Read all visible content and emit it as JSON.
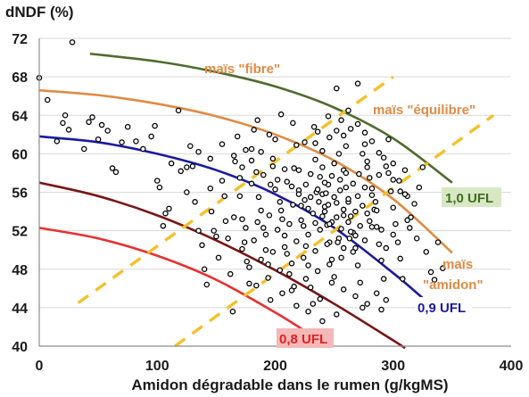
{
  "chart_data": {
    "type": "scatter",
    "title": "",
    "ylabel": "dNDF (%)",
    "xlabel": "Amidon dégradable dans le rumen (g/kgMS)",
    "xlim": [
      0,
      400
    ],
    "ylim": [
      40,
      72
    ],
    "xticks": [
      "0",
      "100",
      "200",
      "300",
      "400"
    ],
    "yticks": [
      "40",
      "44",
      "48",
      "52",
      "56",
      "60",
      "64",
      "68",
      "72"
    ],
    "grid": "horizontal",
    "ufl_curves": [
      {
        "label": "1,0 UFL",
        "color": "#4f6b2e",
        "label_bg": "#d8e8c4",
        "label_color": "#3f6d1f",
        "x": [
          43,
          100,
          150,
          200,
          250,
          300,
          350
        ],
        "y": [
          70.4,
          69.6,
          68.5,
          67.0,
          64.8,
          61.6,
          57.0
        ]
      },
      {
        "label": "",
        "color": "#e08a42",
        "x": [
          0,
          50,
          100,
          150,
          200,
          250,
          300,
          350
        ],
        "y": [
          66.6,
          66.1,
          65.2,
          63.9,
          62.0,
          59.3,
          55.3,
          49.7
        ]
      },
      {
        "label": "0,9 UFL",
        "color": "#1a1aa0",
        "label_bg": "#ffffff",
        "label_color": "#1a1aa0",
        "x": [
          0,
          50,
          100,
          150,
          200,
          250,
          300,
          325
        ],
        "y": [
          61.8,
          61.2,
          60.0,
          58.3,
          55.8,
          52.3,
          47.6,
          45.0
        ]
      },
      {
        "label": "",
        "color": "#7a1515",
        "x": [
          0,
          50,
          100,
          150,
          200,
          250,
          300,
          310
        ],
        "y": [
          57.0,
          55.6,
          53.6,
          51.0,
          47.9,
          44.4,
          40.6,
          39.8
        ]
      },
      {
        "label": "0,8 UFL",
        "color": "#e83030",
        "label_bg": "#f4b8b8",
        "label_color": "#e02020",
        "x": [
          0,
          50,
          100,
          150,
          200,
          230
        ],
        "y": [
          52.3,
          51.2,
          49.4,
          46.9,
          43.5,
          41.2
        ]
      }
    ],
    "type_lines": [
      {
        "x": [
          33,
          300
        ],
        "y": [
          44.5,
          68.0
        ]
      },
      {
        "x": [
          115,
          385
        ],
        "y": [
          40.0,
          64.0
        ]
      }
    ],
    "type_labels": [
      "maïs \"fibre\"",
      "maïs \"équilibre\"",
      "maïs",
      "\"amidon\""
    ],
    "points": [
      [
        0,
        67.9
      ],
      [
        28,
        71.6
      ],
      [
        7,
        65.6
      ],
      [
        15,
        61.3
      ],
      [
        20,
        63.2
      ],
      [
        22,
        64.0
      ],
      [
        25,
        62.5
      ],
      [
        38,
        60.5
      ],
      [
        42,
        63.3
      ],
      [
        45,
        63.8
      ],
      [
        50,
        61.5
      ],
      [
        53,
        63.0
      ],
      [
        58,
        62.4
      ],
      [
        62,
        58.5
      ],
      [
        65,
        58.1
      ],
      [
        70,
        61.2
      ],
      [
        75,
        62.8
      ],
      [
        82,
        61.3
      ],
      [
        88,
        60.5
      ],
      [
        95,
        61.8
      ],
      [
        98,
        62.9
      ],
      [
        100,
        57.2
      ],
      [
        102,
        56.5
      ],
      [
        105,
        52.5
      ],
      [
        107,
        53.8
      ],
      [
        110,
        54.3
      ],
      [
        112,
        59.0
      ],
      [
        118,
        64.5
      ],
      [
        120,
        58.2
      ],
      [
        125,
        56.0
      ],
      [
        128,
        60.8
      ],
      [
        130,
        58.7
      ],
      [
        132,
        55.0
      ],
      [
        135,
        52.0
      ],
      [
        138,
        50.5
      ],
      [
        140,
        48.0
      ],
      [
        142,
        46.4
      ],
      [
        145,
        56.4
      ],
      [
        146,
        54.0
      ],
      [
        148,
        52.0
      ],
      [
        150,
        51.4
      ],
      [
        152,
        49.2
      ],
      [
        155,
        57.2
      ],
      [
        157,
        55.6
      ],
      [
        158,
        53.0
      ],
      [
        160,
        51.2
      ],
      [
        162,
        47.5
      ],
      [
        164,
        43.6
      ],
      [
        166,
        59.2
      ],
      [
        168,
        61.8
      ],
      [
        170,
        55.6
      ],
      [
        172,
        53.2
      ],
      [
        174,
        50.8
      ],
      [
        176,
        48.8
      ],
      [
        178,
        46.5
      ],
      [
        180,
        60.5
      ],
      [
        182,
        62.5
      ],
      [
        184,
        58.1
      ],
      [
        186,
        55.5
      ],
      [
        188,
        54.1
      ],
      [
        190,
        52.3
      ],
      [
        192,
        50.0
      ],
      [
        194,
        48.5
      ],
      [
        196,
        56.8
      ],
      [
        198,
        59.5
      ],
      [
        200,
        61.5
      ],
      [
        202,
        57.3
      ],
      [
        204,
        55.0
      ],
      [
        206,
        53.2
      ],
      [
        208,
        51.5
      ],
      [
        210,
        49.6
      ],
      [
        212,
        47.5
      ],
      [
        214,
        45.8
      ],
      [
        216,
        58.5
      ],
      [
        218,
        60.9
      ],
      [
        220,
        56.2
      ],
      [
        222,
        54.6
      ],
      [
        224,
        52.5
      ],
      [
        226,
        50.4
      ],
      [
        228,
        48.4
      ],
      [
        230,
        46.1
      ],
      [
        232,
        44.4
      ],
      [
        234,
        59.4
      ],
      [
        236,
        62.3
      ],
      [
        238,
        57.6
      ],
      [
        240,
        55.8
      ],
      [
        242,
        54.0
      ],
      [
        244,
        52.6
      ],
      [
        246,
        50.8
      ],
      [
        248,
        49.0
      ],
      [
        250,
        47.2
      ],
      [
        252,
        43.3
      ],
      [
        254,
        60.0
      ],
      [
        256,
        63.5
      ],
      [
        258,
        58.3
      ],
      [
        260,
        56.5
      ],
      [
        262,
        55.0
      ],
      [
        264,
        53.5
      ],
      [
        266,
        51.8
      ],
      [
        268,
        50.2
      ],
      [
        270,
        48.4
      ],
      [
        272,
        46.6
      ],
      [
        274,
        44.0
      ],
      [
        276,
        61.0
      ],
      [
        278,
        59.2
      ],
      [
        280,
        57.5
      ],
      [
        282,
        55.7
      ],
      [
        284,
        54.2
      ],
      [
        286,
        52.4
      ],
      [
        288,
        50.6
      ],
      [
        290,
        48.9
      ],
      [
        292,
        47.0
      ],
      [
        294,
        44.8
      ],
      [
        296,
        58.0
      ],
      [
        298,
        56.1
      ],
      [
        300,
        54.4
      ],
      [
        302,
        52.7
      ],
      [
        304,
        50.8
      ],
      [
        306,
        49.1
      ],
      [
        308,
        47.0
      ],
      [
        310,
        58.3
      ],
      [
        312,
        55.6
      ],
      [
        314,
        52.3
      ],
      [
        270,
        67.3
      ],
      [
        252,
        66.8
      ],
      [
        262,
        64.5
      ],
      [
        245,
        63.9
      ],
      [
        233,
        62.8
      ],
      [
        225,
        61.2
      ],
      [
        215,
        63.2
      ],
      [
        205,
        64.1
      ],
      [
        195,
        62.0
      ],
      [
        185,
        63.5
      ],
      [
        175,
        60.4
      ],
      [
        165,
        59.8
      ],
      [
        155,
        61.0
      ],
      [
        145,
        59.5
      ],
      [
        135,
        60.2
      ],
      [
        125,
        58.6
      ],
      [
        260,
        60.8
      ],
      [
        250,
        59.0
      ],
      [
        240,
        58.6
      ],
      [
        230,
        57.9
      ],
      [
        220,
        58.3
      ],
      [
        210,
        57.1
      ],
      [
        200,
        56.3
      ],
      [
        190,
        57.8
      ],
      [
        180,
        56.9
      ],
      [
        170,
        57.5
      ],
      [
        255,
        57.3
      ],
      [
        245,
        56.8
      ],
      [
        235,
        56.0
      ],
      [
        225,
        55.2
      ],
      [
        215,
        54.7
      ],
      [
        205,
        54.1
      ],
      [
        195,
        53.6
      ],
      [
        185,
        52.9
      ],
      [
        175,
        52.3
      ],
      [
        165,
        53.4
      ],
      [
        262,
        55.3
      ],
      [
        252,
        54.9
      ],
      [
        242,
        54.5
      ],
      [
        232,
        53.8
      ],
      [
        222,
        53.1
      ],
      [
        212,
        52.7
      ],
      [
        202,
        52.1
      ],
      [
        192,
        51.6
      ],
      [
        182,
        51.0
      ],
      [
        172,
        50.1
      ],
      [
        268,
        54.0
      ],
      [
        258,
        53.6
      ],
      [
        248,
        52.9
      ],
      [
        238,
        52.1
      ],
      [
        228,
        51.6
      ],
      [
        218,
        50.9
      ],
      [
        208,
        50.3
      ],
      [
        198,
        49.8
      ],
      [
        188,
        49.0
      ],
      [
        178,
        48.2
      ],
      [
        272,
        52.5
      ],
      [
        264,
        51.9
      ],
      [
        254,
        51.2
      ],
      [
        244,
        50.6
      ],
      [
        234,
        49.9
      ],
      [
        224,
        49.2
      ],
      [
        214,
        48.6
      ],
      [
        204,
        47.9
      ],
      [
        194,
        47.1
      ],
      [
        184,
        46.3
      ],
      [
        280,
        53.0
      ],
      [
        276,
        51.0
      ],
      [
        266,
        49.8
      ],
      [
        256,
        49.2
      ],
      [
        246,
        48.5
      ],
      [
        236,
        47.8
      ],
      [
        226,
        47.0
      ],
      [
        216,
        46.2
      ],
      [
        206,
        45.5
      ],
      [
        196,
        44.8
      ],
      [
        285,
        55.0
      ],
      [
        288,
        57.8
      ],
      [
        292,
        59.6
      ],
      [
        296,
        61.5
      ],
      [
        300,
        59.0
      ],
      [
        305,
        57.2
      ],
      [
        310,
        55.8
      ],
      [
        315,
        53.4
      ],
      [
        320,
        51.2
      ],
      [
        318,
        54.8
      ],
      [
        322,
        56.5
      ],
      [
        325,
        58.6
      ],
      [
        328,
        49.8
      ],
      [
        332,
        47.7
      ],
      [
        335,
        46.9
      ],
      [
        338,
        50.8
      ],
      [
        342,
        48.1
      ],
      [
        286,
        45.5
      ],
      [
        290,
        43.8
      ],
      [
        278,
        44.4
      ],
      [
        268,
        45.2
      ],
      [
        258,
        45.9
      ],
      [
        248,
        46.6
      ],
      [
        238,
        44.9
      ],
      [
        228,
        43.6
      ],
      [
        218,
        44.2
      ],
      [
        240,
        42.6
      ],
      [
        255,
        56.2
      ],
      [
        250,
        55.5
      ],
      [
        245,
        54.7
      ],
      [
        258,
        54.2
      ],
      [
        252,
        53.4
      ],
      [
        246,
        52.7
      ],
      [
        262,
        52.9
      ],
      [
        256,
        52.2
      ],
      [
        243,
        55.9
      ],
      [
        237,
        55.0
      ],
      [
        248,
        57.7
      ],
      [
        242,
        57.0
      ],
      [
        236,
        56.3
      ],
      [
        230,
        55.5
      ],
      [
        226,
        56.8
      ],
      [
        260,
        58.0
      ],
      [
        266,
        56.9
      ],
      [
        270,
        55.6
      ],
      [
        274,
        54.6
      ],
      [
        278,
        53.8
      ],
      [
        282,
        52.4
      ],
      [
        271,
        57.9
      ],
      [
        276,
        56.5
      ],
      [
        263,
        51.2
      ],
      [
        258,
        50.2
      ],
      [
        268,
        51.5
      ],
      [
        253,
        50.8
      ],
      [
        240,
        53.5
      ],
      [
        234,
        52.8
      ],
      [
        228,
        54.3
      ],
      [
        220,
        55.8
      ],
      [
        214,
        56.6
      ],
      [
        208,
        58.4
      ],
      [
        198,
        58.7
      ],
      [
        188,
        60.2
      ],
      [
        180,
        59.3
      ],
      [
        172,
        58.6
      ],
      [
        234,
        61.1
      ],
      [
        240,
        60.3
      ],
      [
        246,
        61.7
      ],
      [
        252,
        62.4
      ],
      [
        258,
        61.9
      ],
      [
        264,
        62.6
      ],
      [
        270,
        63.1
      ],
      [
        276,
        62.2
      ],
      [
        282,
        61.3
      ],
      [
        288,
        60.1
      ],
      [
        294,
        58.7
      ],
      [
        300,
        57.3
      ],
      [
        306,
        56.1
      ],
      [
        312,
        53.1
      ],
      [
        300,
        51.6
      ],
      [
        294,
        50.2
      ],
      [
        290,
        52.1
      ],
      [
        286,
        54.1
      ],
      [
        282,
        56.4
      ],
      [
        278,
        58.6
      ],
      [
        274,
        60.0
      ]
    ]
  }
}
